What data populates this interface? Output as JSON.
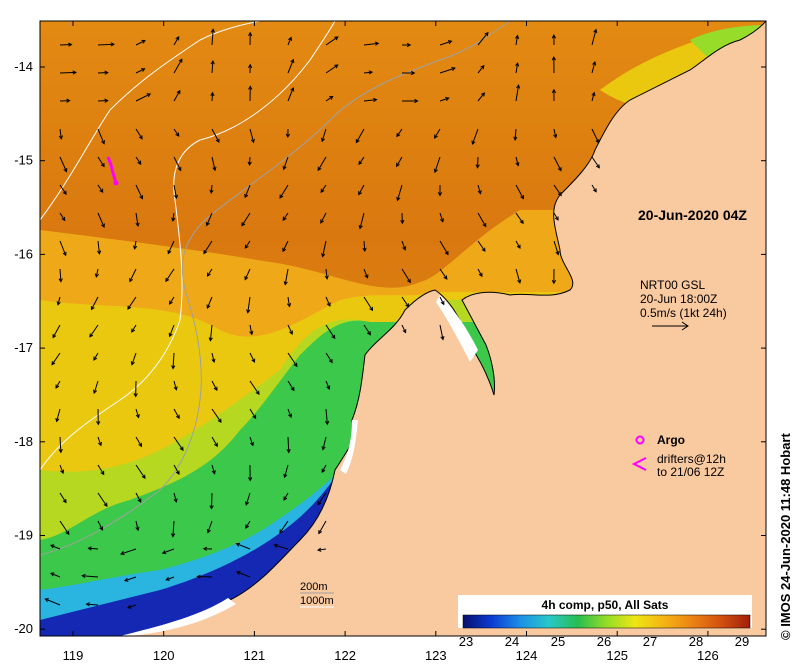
{
  "map": {
    "lat_ticks": [
      "-14",
      "-15",
      "-16",
      "-17",
      "-18",
      "-19",
      "-20"
    ],
    "lon_ticks": [
      "119",
      "120",
      "121",
      "122",
      "123",
      "124",
      "125",
      "126"
    ],
    "colors": {
      "land": "#f9c9a0",
      "warm": "#d9780f",
      "orange": "#ec9a12",
      "yellow": "#eac810",
      "green": "#3cc84a",
      "cyan": "#2ab4e0",
      "blue": "#1428b4",
      "argo": "#ff00ff"
    }
  },
  "annotations": {
    "timestamp": "20-Jun-2020 04Z",
    "current_source": "NRT00 GSL",
    "current_time": "20-Jun 18:00Z",
    "current_scale": "0.5m/s (1kt 24h)",
    "argo_label": "Argo",
    "drifters_line1": "drifters@12h",
    "drifters_line2": "to 21/06 12Z"
  },
  "isobaths": {
    "label_200": "200m",
    "label_1000": "1000m"
  },
  "colorbar": {
    "title": "4h comp, p50, All Sats",
    "ticks": [
      "23",
      "24",
      "25",
      "26",
      "27",
      "28",
      "29"
    ],
    "stops": [
      "#08106e",
      "#0a3cd2",
      "#1e90e6",
      "#28c8c8",
      "#28be50",
      "#96dc28",
      "#eee614",
      "#f5b414",
      "#eb8214",
      "#d2500f",
      "#a01e0a"
    ]
  },
  "credit": "© IMOS 24-Jun-2020 11:48 Hobart"
}
